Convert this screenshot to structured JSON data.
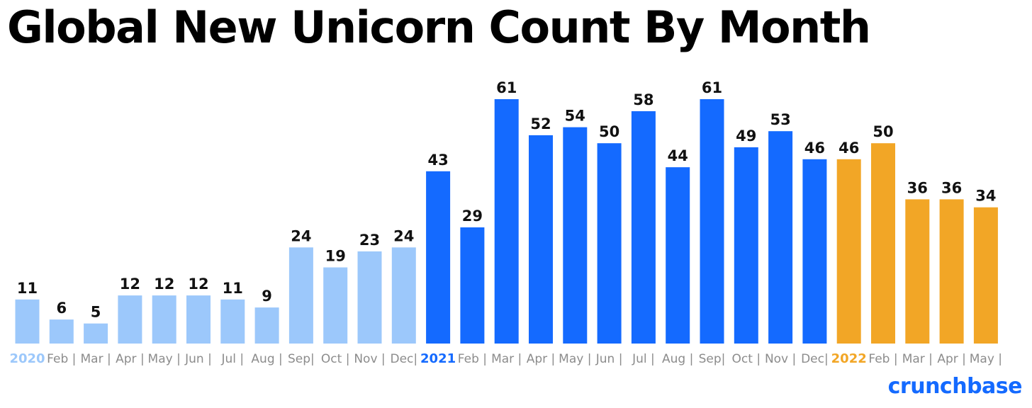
{
  "title": "Global New Unicorn Count By Month",
  "brand": "crunchbase",
  "colors": {
    "2020": "#9cc8fb",
    "2021": "#146aff",
    "2022": "#f2a626",
    "axis_text": "#8c8c8c",
    "value_text": "#111111"
  },
  "chart_data": {
    "type": "bar",
    "title": "Global New Unicorn Count By Month",
    "xlabel": "",
    "ylabel": "",
    "ylim": [
      0,
      61
    ],
    "grid": false,
    "categories": [
      "2020",
      "Feb |",
      "Mar |",
      "Apr |",
      "May |",
      "Jun |",
      "Jul |",
      "Aug |",
      "Sep|",
      "Oct |",
      "Nov |",
      "Dec|",
      "2021",
      "Feb |",
      "Mar |",
      "Apr |",
      "May |",
      "Jun |",
      "Jul |",
      "Aug |",
      "Sep|",
      "Oct |",
      "Nov |",
      "Dec|",
      "2022",
      "Feb |",
      "Mar |",
      "Apr |",
      "May |"
    ],
    "values": [
      11,
      6,
      5,
      12,
      12,
      12,
      11,
      9,
      24,
      19,
      23,
      24,
      43,
      29,
      61,
      52,
      54,
      50,
      58,
      44,
      61,
      49,
      53,
      46,
      46,
      50,
      36,
      36,
      34
    ],
    "groups": [
      "2020",
      "2020",
      "2020",
      "2020",
      "2020",
      "2020",
      "2020",
      "2020",
      "2020",
      "2020",
      "2020",
      "2020",
      "2021",
      "2021",
      "2021",
      "2021",
      "2021",
      "2021",
      "2021",
      "2021",
      "2021",
      "2021",
      "2021",
      "2021",
      "2022",
      "2022",
      "2022",
      "2022",
      "2022"
    ]
  }
}
